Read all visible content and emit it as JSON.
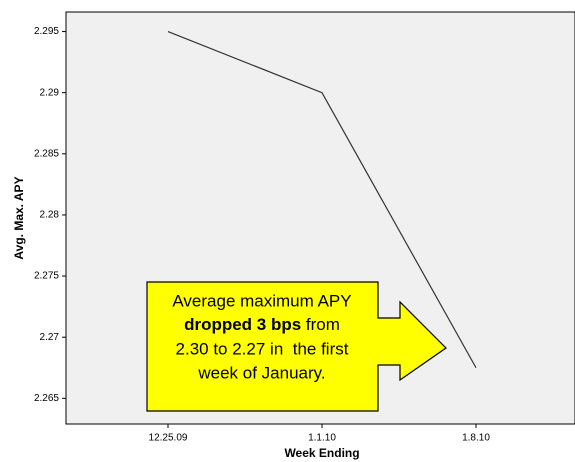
{
  "chart_data": {
    "type": "line",
    "x_label": "Week Ending",
    "y_label": "Avg. Max. APY",
    "categories": [
      "12.25.09",
      "1.1.10",
      "1.8.10"
    ],
    "values": [
      2.295,
      2.29,
      2.2675
    ],
    "color": "#333333",
    "ylim": [
      2.2629,
      2.2966
    ],
    "yticks": [
      2.265,
      2.27,
      2.275,
      2.28,
      2.285,
      2.29,
      2.295
    ],
    "annotation": [
      "Average maximum APY",
      "dropped 3 bps",
      " from",
      "2.30 to 2.27 in  the first",
      "week of January."
    ]
  }
}
